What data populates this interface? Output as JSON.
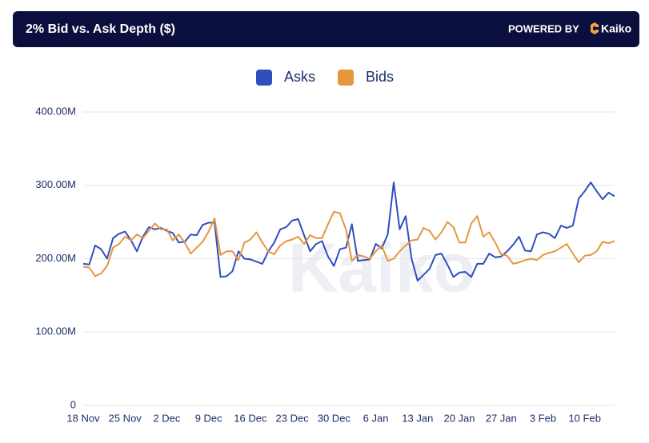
{
  "brand": {
    "powered_by": "POWERED BY",
    "name": "Kaiko",
    "watermark": "Kaiko"
  },
  "chart_data": {
    "type": "line",
    "title": "2% Bid vs. Ask Depth ($)",
    "categories": [
      "18 Nov",
      null,
      null,
      null,
      null,
      null,
      null,
      "25 Nov",
      null,
      null,
      null,
      null,
      null,
      null,
      "2 Dec",
      null,
      null,
      null,
      null,
      null,
      null,
      "9 Dec",
      null,
      null,
      null,
      null,
      null,
      null,
      "16 Dec",
      null,
      null,
      null,
      null,
      null,
      null,
      "23 Dec",
      null,
      null,
      null,
      null,
      null,
      null,
      "30 Dec",
      null,
      null,
      null,
      null,
      null,
      null,
      "6 Jan",
      null,
      null,
      null,
      null,
      null,
      null,
      "13 Jan",
      null,
      null,
      null,
      null,
      null,
      null,
      "20 Jan",
      null,
      null,
      null,
      null,
      null,
      null,
      "27 Jan",
      null,
      null,
      null,
      null,
      null,
      null,
      "3 Feb",
      null,
      null,
      null,
      null,
      null,
      null,
      "10 Feb",
      null,
      null,
      null,
      null,
      null
    ],
    "series": [
      {
        "name": "Asks",
        "color": "#2f4fbf",
        "values": [
          193000000.0,
          192000000.0,
          218000000.0,
          213000000.0,
          200000000.0,
          228000000.0,
          234000000.0,
          237000000.0,
          225000000.0,
          210000000.0,
          230000000.0,
          243000000.0,
          240000000.0,
          242000000.0,
          238000000.0,
          235000000.0,
          222000000.0,
          223000000.0,
          233000000.0,
          232000000.0,
          246000000.0,
          249000000.0,
          249000000.0,
          175000000.0,
          176000000.0,
          183000000.0,
          210000000.0,
          200000000.0,
          199000000.0,
          196000000.0,
          193000000.0,
          210000000.0,
          222000000.0,
          240000000.0,
          243000000.0,
          252000000.0,
          254000000.0,
          232000000.0,
          210000000.0,
          220000000.0,
          224000000.0,
          203000000.0,
          190000000.0,
          213000000.0,
          215000000.0,
          247000000.0,
          197000000.0,
          198000000.0,
          199000000.0,
          220000000.0,
          214000000.0,
          233000000.0,
          304000000.0,
          240000000.0,
          258000000.0,
          200000000.0,
          170000000.0,
          178000000.0,
          186000000.0,
          205000000.0,
          207000000.0,
          192000000.0,
          175000000.0,
          181000000.0,
          182000000.0,
          175000000.0,
          193000000.0,
          193000000.0,
          207000000.0,
          202000000.0,
          203000000.0,
          210000000.0,
          219000000.0,
          230000000.0,
          211000000.0,
          210000000.0,
          233000000.0,
          236000000.0,
          234000000.0,
          228000000.0,
          245000000.0,
          242000000.0,
          245000000.0,
          282000000.0,
          292000000.0,
          304000000.0,
          292000000.0,
          281000000.0,
          290000000.0,
          285000000.0
        ]
      },
      {
        "name": "Bids",
        "color": "#e8953f",
        "values": [
          189000000.0,
          188000000.0,
          176000000.0,
          180000000.0,
          190000000.0,
          215000000.0,
          220000000.0,
          230000000.0,
          225000000.0,
          233000000.0,
          228000000.0,
          238000000.0,
          248000000.0,
          240000000.0,
          240000000.0,
          225000000.0,
          233000000.0,
          222000000.0,
          207000000.0,
          215000000.0,
          223000000.0,
          237000000.0,
          255000000.0,
          205000000.0,
          210000000.0,
          210000000.0,
          198000000.0,
          222000000.0,
          226000000.0,
          236000000.0,
          222000000.0,
          210000000.0,
          206000000.0,
          218000000.0,
          224000000.0,
          226000000.0,
          230000000.0,
          220000000.0,
          232000000.0,
          228000000.0,
          228000000.0,
          247000000.0,
          264000000.0,
          262000000.0,
          240000000.0,
          197000000.0,
          205000000.0,
          203000000.0,
          200000000.0,
          210000000.0,
          218000000.0,
          197000000.0,
          200000000.0,
          210000000.0,
          218000000.0,
          225000000.0,
          226000000.0,
          242000000.0,
          238000000.0,
          226000000.0,
          236000000.0,
          250000000.0,
          243000000.0,
          222000000.0,
          222000000.0,
          248000000.0,
          258000000.0,
          230000000.0,
          236000000.0,
          222000000.0,
          206000000.0,
          204000000.0,
          193000000.0,
          195000000.0,
          198000000.0,
          200000000.0,
          198000000.0,
          205000000.0,
          208000000.0,
          210000000.0,
          215000000.0,
          220000000.0,
          207000000.0,
          195000000.0,
          204000000.0,
          205000000.0,
          210000000.0,
          223000000.0,
          221000000.0,
          224000000.0
        ]
      }
    ],
    "ylim": [
      0,
      400000000
    ],
    "yticks": [
      0,
      {
        "value": 100000000,
        "label": "100.00M"
      },
      {
        "value": 200000000,
        "label": "200.00M"
      },
      {
        "value": 300000000,
        "label": "300.00M"
      },
      {
        "value": 400000000,
        "label": "400.00M"
      }
    ],
    "grid": true,
    "legend": "top"
  }
}
